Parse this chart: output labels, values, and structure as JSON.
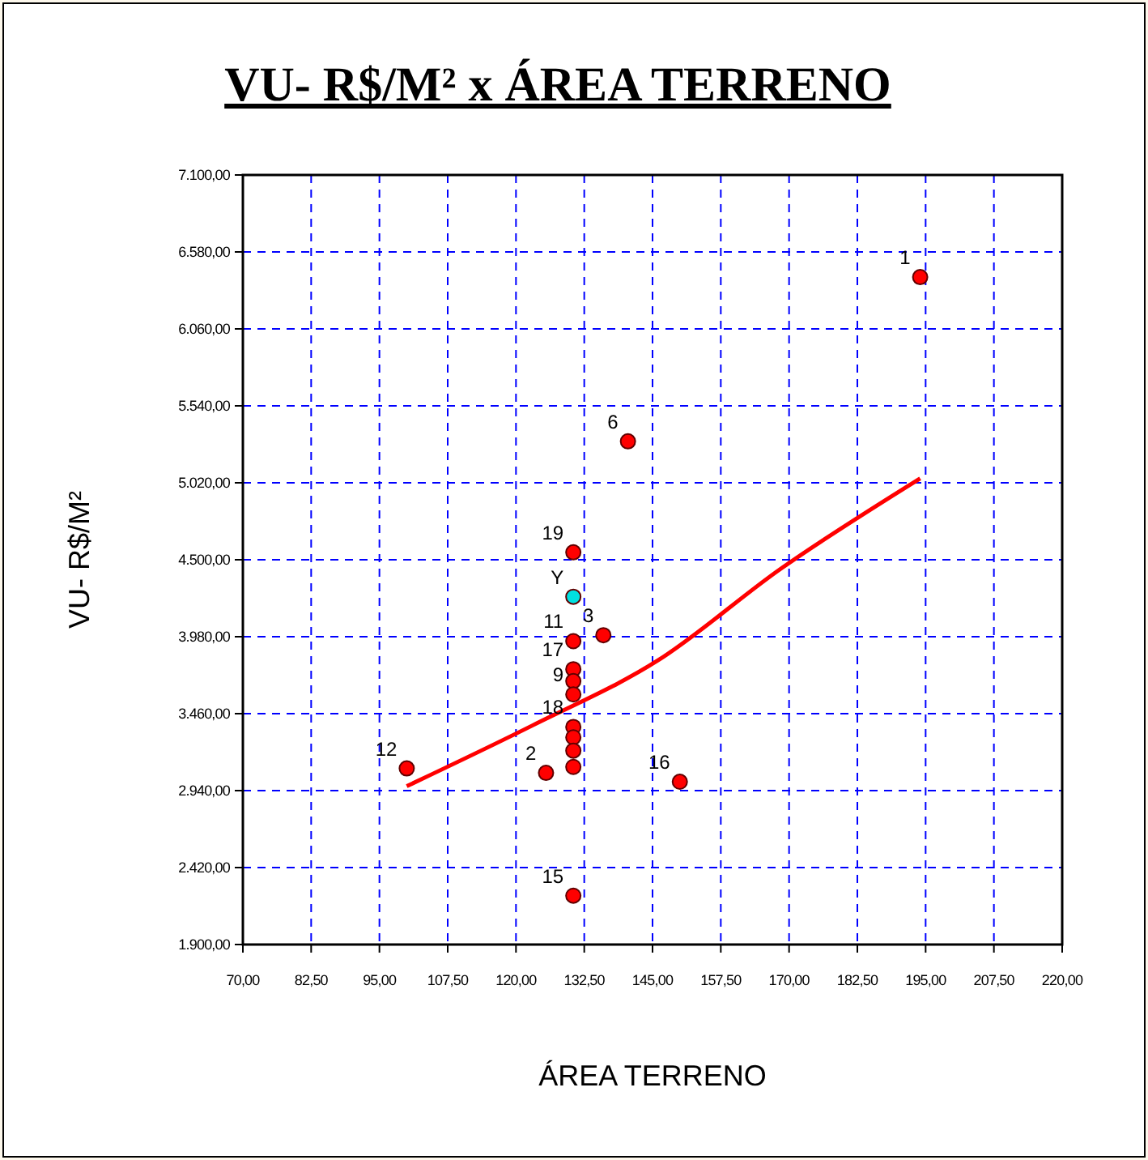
{
  "chart_data": {
    "type": "scatter",
    "title": "VU- R$/M² x ÁREA TERRENO",
    "xlabel": "ÁREA TERRENO",
    "ylabel": "VU- R$/M²",
    "xlim": [
      70,
      220
    ],
    "ylim": [
      1900,
      7100
    ],
    "xticks": [
      {
        "value": 70,
        "label": "70,00"
      },
      {
        "value": 82.5,
        "label": "82,50"
      },
      {
        "value": 95,
        "label": "95,00"
      },
      {
        "value": 107.5,
        "label": "107,50"
      },
      {
        "value": 120,
        "label": "120,00"
      },
      {
        "value": 132.5,
        "label": "132,50"
      },
      {
        "value": 145,
        "label": "145,00"
      },
      {
        "value": 157.5,
        "label": "157,50"
      },
      {
        "value": 170,
        "label": "170,00"
      },
      {
        "value": 182.5,
        "label": "182,50"
      },
      {
        "value": 195,
        "label": "195,00"
      },
      {
        "value": 207.5,
        "label": "207,50"
      },
      {
        "value": 220,
        "label": "220,00"
      }
    ],
    "yticks": [
      {
        "value": 1900,
        "label": "1.900,00"
      },
      {
        "value": 2420,
        "label": "2.420,00"
      },
      {
        "value": 2940,
        "label": "2.940,00"
      },
      {
        "value": 3460,
        "label": "3.460,00"
      },
      {
        "value": 3980,
        "label": "3.980,00"
      },
      {
        "value": 4500,
        "label": "4.500,00"
      },
      {
        "value": 5020,
        "label": "5.020,00"
      },
      {
        "value": 5540,
        "label": "5.540,00"
      },
      {
        "value": 6060,
        "label": "6.060,00"
      },
      {
        "value": 6580,
        "label": "6.580,00"
      },
      {
        "value": 7100,
        "label": "7.100,00"
      }
    ],
    "grid": true,
    "marker": "circle",
    "series": [
      {
        "color": "#ff0000",
        "x": [
          194,
          140.5,
          130.5,
          136,
          130.5,
          130.5,
          130.5,
          130.5,
          130.5,
          130.5,
          130.5,
          130.5,
          125.5,
          100,
          150,
          130.5
        ],
        "values": [
          6410,
          5300,
          4550,
          3990,
          3950,
          3760,
          3680,
          3590,
          3370,
          3300,
          3210,
          3100,
          3060,
          3090,
          3000,
          2230
        ]
      },
      {
        "color": "#00e0e0",
        "x": [
          130.5
        ],
        "values": [
          4250
        ]
      },
      {
        "type": "line",
        "color": "#ff0000",
        "marker": "none",
        "x": [
          100,
          123,
          146,
          168.5,
          194
        ],
        "values": [
          2970,
          3380,
          3820,
          4440,
          5050
        ]
      }
    ],
    "annotations": [
      {
        "text": "1",
        "x": 194,
        "y": 6410
      },
      {
        "text": "6",
        "x": 140.5,
        "y": 5300
      },
      {
        "text": "19",
        "x": 130.5,
        "y": 4550
      },
      {
        "text": "Y",
        "x": 130.5,
        "y": 4250
      },
      {
        "text": "3",
        "x": 136,
        "y": 3990
      },
      {
        "text": "11",
        "x": 130.5,
        "y": 3950
      },
      {
        "text": "17",
        "x": 130.5,
        "y": 3760
      },
      {
        "text": "9",
        "x": 130.5,
        "y": 3590
      },
      {
        "text": "18",
        "x": 130.5,
        "y": 3370
      },
      {
        "text": "2",
        "x": 125.5,
        "y": 3060
      },
      {
        "text": "12",
        "x": 100,
        "y": 3090
      },
      {
        "text": "16",
        "x": 150,
        "y": 3000
      },
      {
        "text": "15",
        "x": 130.5,
        "y": 2230
      }
    ]
  }
}
